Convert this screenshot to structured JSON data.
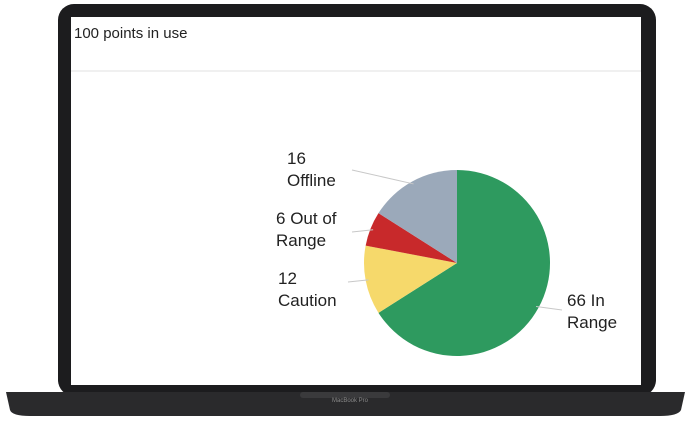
{
  "header": {
    "title": "100 points in use"
  },
  "device_label": "MacBook Pro",
  "chart_data": {
    "type": "pie",
    "categories": [
      "In Range",
      "Caution",
      "Out of Range",
      "Offline"
    ],
    "values": [
      66,
      12,
      6,
      16
    ],
    "colors": [
      "#2e9a5f",
      "#f6d96b",
      "#c8292b",
      "#9ba9ba"
    ]
  }
}
